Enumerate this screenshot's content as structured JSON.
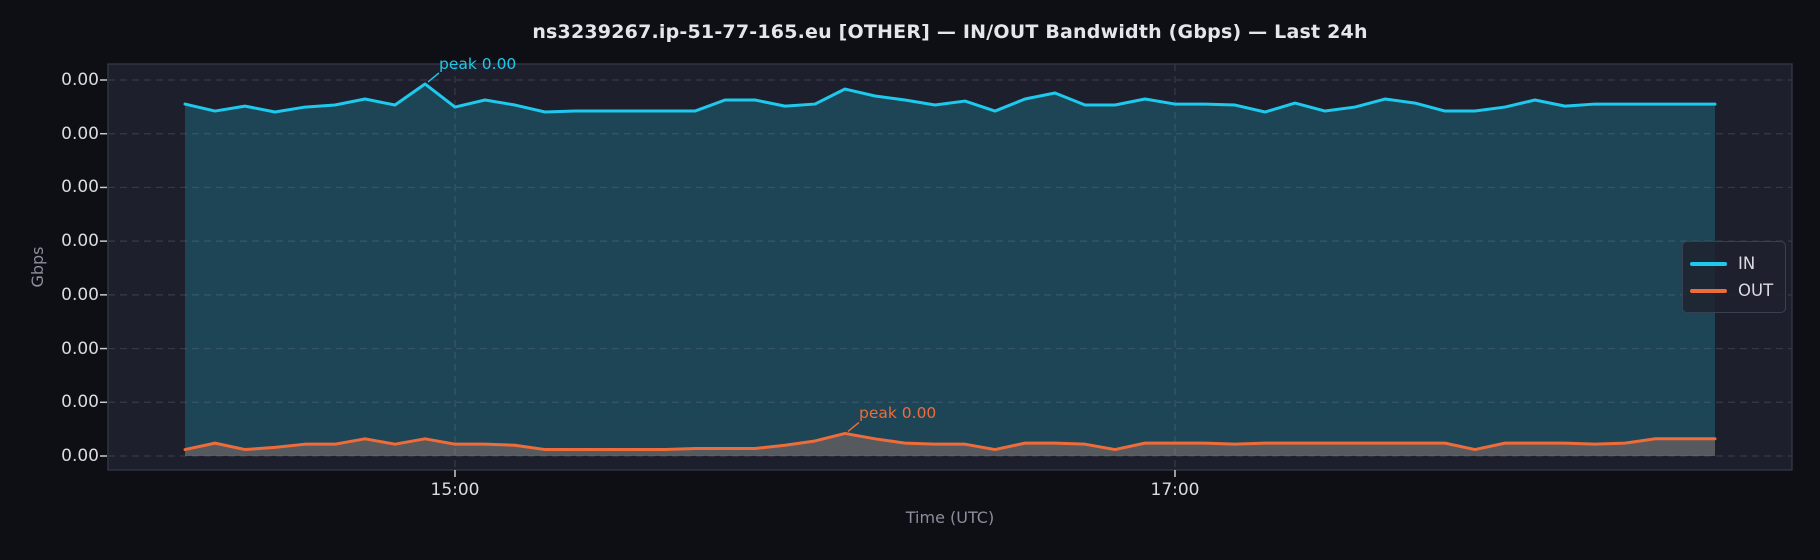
{
  "chart_data": {
    "type": "area",
    "title": "ns3239267.ip-51-77-165.eu [OTHER] — IN/OUT Bandwidth (Gbps) — Last 24h",
    "xlabel": "Time (UTC)",
    "ylabel": "Gbps",
    "grid": true,
    "legend_position": "center right",
    "ylim": [
      -0.00013,
      0.00365
    ],
    "y_tick_values": [
      0,
      0.0005,
      0.001,
      0.0015,
      0.002,
      0.0025,
      0.003,
      0.0035
    ],
    "y_tick_labels": [
      "0.00",
      "0.00",
      "0.00",
      "0.00",
      "0.00",
      "0.00",
      "0.00",
      "0.00"
    ],
    "x": [
      "14:15",
      "14:20",
      "14:25",
      "14:30",
      "14:35",
      "14:40",
      "14:45",
      "14:50",
      "14:55",
      "15:00",
      "15:05",
      "15:10",
      "15:15",
      "15:20",
      "15:25",
      "15:30",
      "15:35",
      "15:40",
      "15:45",
      "15:50",
      "15:55",
      "16:00",
      "16:05",
      "16:10",
      "16:15",
      "16:20",
      "16:25",
      "16:30",
      "16:35",
      "16:40",
      "16:45",
      "16:50",
      "16:55",
      "17:00",
      "17:05",
      "17:10",
      "17:15",
      "17:20",
      "17:25",
      "17:30",
      "17:35",
      "17:40",
      "17:45",
      "17:50",
      "17:55",
      "18:00",
      "18:05",
      "18:10",
      "18:15",
      "18:20",
      "18:25",
      "18:30"
    ],
    "x_tick_positions": [
      9,
      33
    ],
    "x_tick_labels": [
      "15:00",
      "17:00"
    ],
    "series": [
      {
        "name": "IN",
        "color": "#1ec9ee",
        "fill": "rgba(34,200,238,0.22)",
        "values": [
          0.003276,
          0.003211,
          0.003257,
          0.003202,
          0.003248,
          0.003267,
          0.003323,
          0.003267,
          0.003463,
          0.003248,
          0.003314,
          0.003267,
          0.003202,
          0.003211,
          0.003211,
          0.003211,
          0.003211,
          0.003211,
          0.003314,
          0.003314,
          0.003257,
          0.003276,
          0.003416,
          0.003351,
          0.003314,
          0.003267,
          0.003304,
          0.003211,
          0.003323,
          0.003379,
          0.003267,
          0.003267,
          0.003323,
          0.003276,
          0.003276,
          0.003267,
          0.003202,
          0.003285,
          0.003211,
          0.003248,
          0.003323,
          0.003285,
          0.003211,
          0.003211,
          0.003248,
          0.003314,
          0.003257,
          0.003276,
          0.003276,
          0.003276,
          0.003276,
          0.003276
        ]
      },
      {
        "name": "OUT",
        "color": "#ee6c3a",
        "fill": "rgba(94,93,96,0.88)",
        "values": [
          6e-05,
          0.00012,
          6e-05,
          8e-05,
          0.00011,
          0.00011,
          0.00016,
          0.00011,
          0.00016,
          0.00011,
          0.00011,
          0.0001,
          6e-05,
          6e-05,
          6e-05,
          6e-05,
          6e-05,
          7e-05,
          7e-05,
          7e-05,
          0.0001,
          0.00014,
          0.00021,
          0.00016,
          0.00012,
          0.00011,
          0.00011,
          6e-05,
          0.00012,
          0.00012,
          0.00011,
          6e-05,
          0.00012,
          0.00012,
          0.00012,
          0.00011,
          0.00012,
          0.00012,
          0.00012,
          0.00012,
          0.00012,
          0.00012,
          0.00012,
          6e-05,
          0.00012,
          0.00012,
          0.00012,
          0.00011,
          0.00012,
          0.00016,
          0.00016,
          0.00016
        ]
      }
    ],
    "annotations": [
      {
        "label": "peak 0.00",
        "series": "in",
        "x_index": 8,
        "value": 0.003463,
        "color": "#1ec9ee"
      },
      {
        "label": "peak 0.00",
        "series": "out",
        "x_index": 22,
        "value": 0.00021,
        "color": "#ee6c3a"
      }
    ]
  },
  "colors": {
    "page_bg": "#0d0f15",
    "plot_bg": "#1d202c",
    "spine": "#343846",
    "grid": "rgba(150,155,170,0.22)",
    "tick_mark": "#c9c9cf",
    "title": "#e6e6ea",
    "tick_label": "#dadae0",
    "axis_label": "#8b8e9b",
    "legend_text": "#dadae0"
  }
}
